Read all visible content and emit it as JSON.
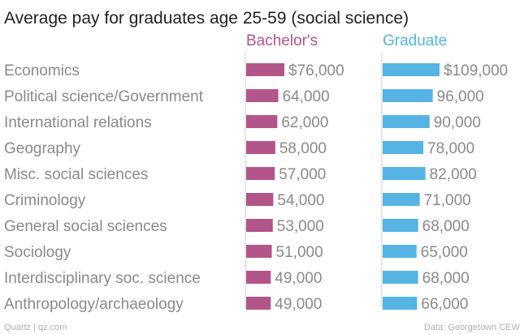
{
  "chart_data": {
    "type": "bar",
    "title": "Average pay for graduates age 25-59 (social science)",
    "categories": [
      "Economics",
      "Political science/Government",
      "International relations",
      "Geography",
      "Misc. social sciences",
      "Criminology",
      "General social sciences",
      "Sociology",
      "Interdisciplinary soc. science",
      "Anthropology/archaeology"
    ],
    "series": [
      {
        "name": "Bachelor's",
        "color": "#b25589",
        "values": [
          76000,
          64000,
          62000,
          58000,
          57000,
          54000,
          53000,
          51000,
          49000,
          49000
        ],
        "labels": [
          "$76,000",
          "64,000",
          "62,000",
          "58,000",
          "57,000",
          "54,000",
          "53,000",
          "51,000",
          "49,000",
          "49,000"
        ]
      },
      {
        "name": "Graduate",
        "color": "#55b4e3",
        "values": [
          109000,
          96000,
          90000,
          78000,
          82000,
          71000,
          68000,
          65000,
          68000,
          66000
        ],
        "labels": [
          "$109,000",
          "96,000",
          "90,000",
          "78,000",
          "82,000",
          "71,000",
          "68,000",
          "65,000",
          "68,000",
          "66,000"
        ]
      }
    ],
    "footer_left": "Quartz | qz.com",
    "footer_right": "Data: Georgetown CEW"
  }
}
